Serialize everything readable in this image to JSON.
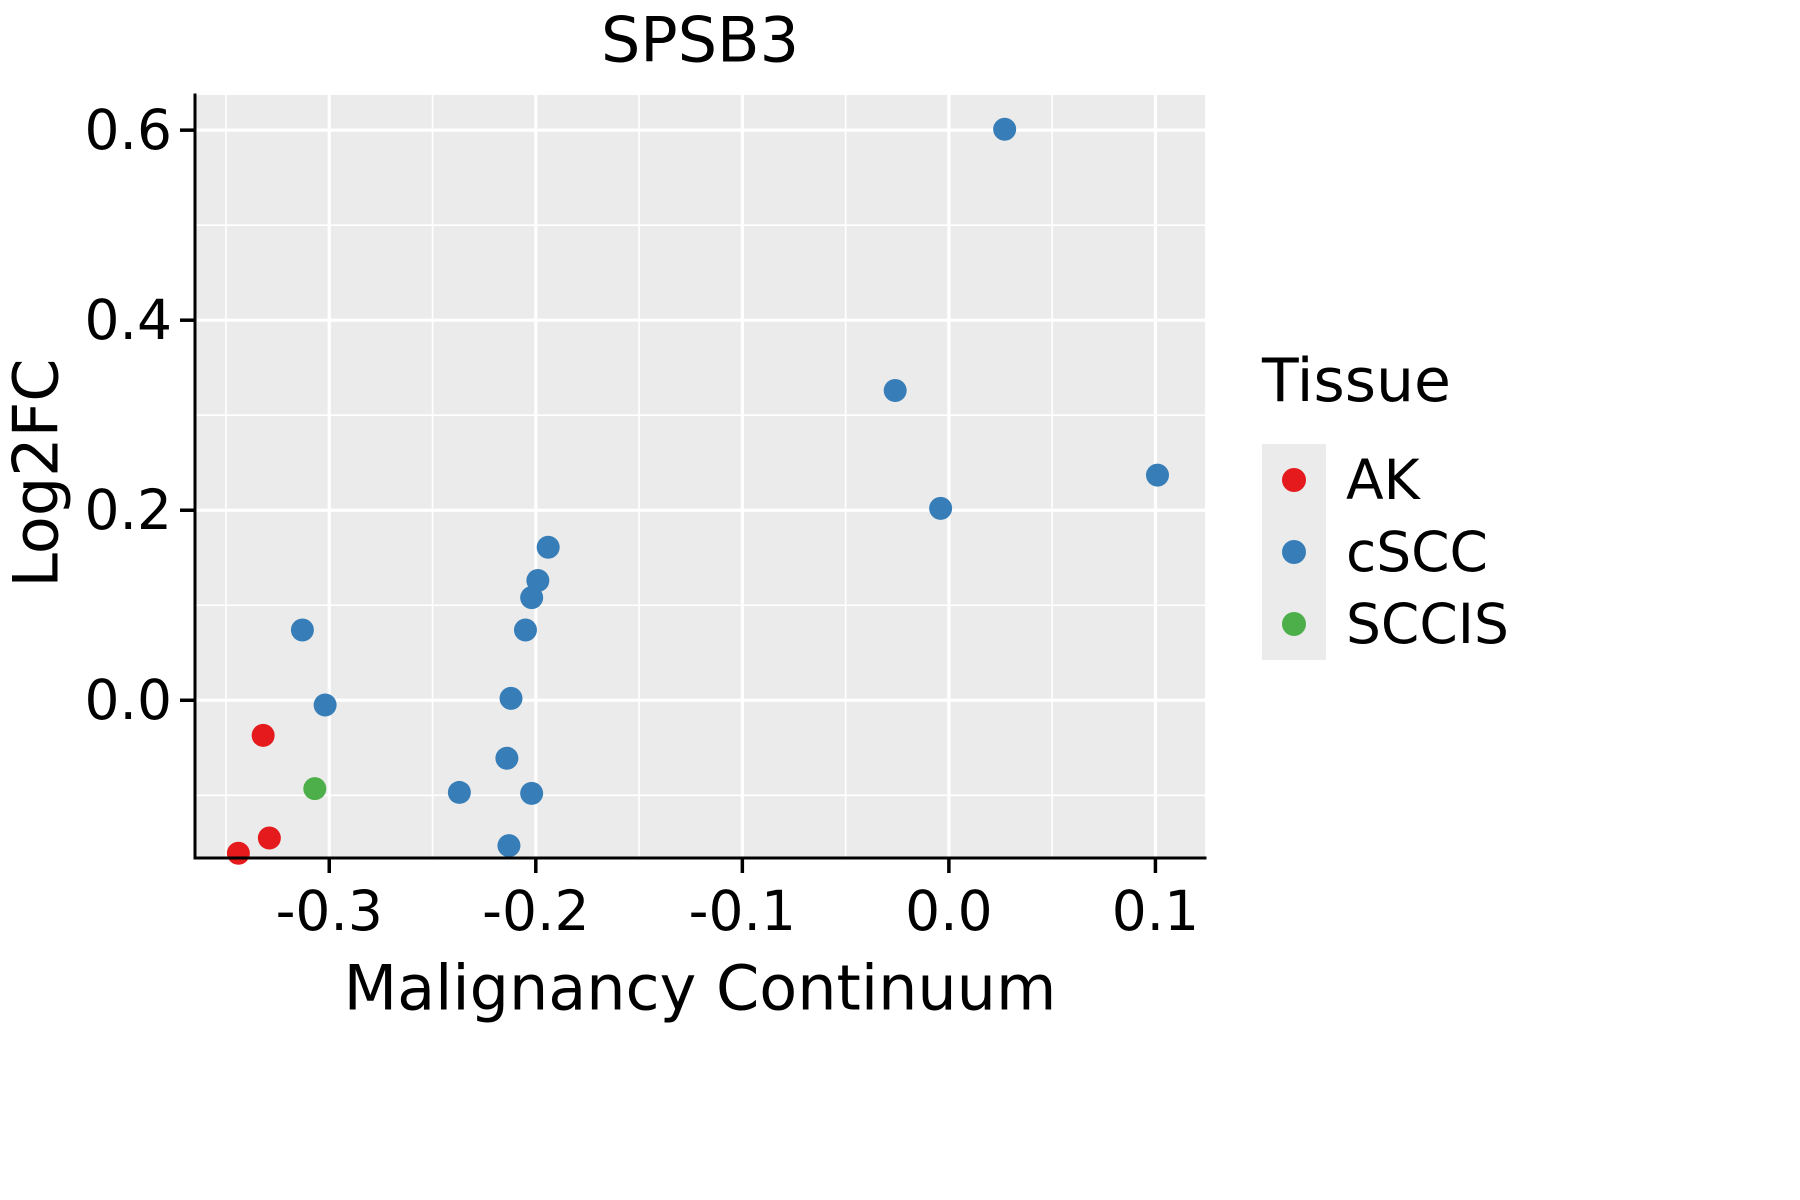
{
  "chart_data": {
    "type": "scatter",
    "title": "SPSB3",
    "xlabel": "Malignancy Continuum",
    "ylabel": "Log2FC",
    "xlim": [
      -0.365,
      0.124
    ],
    "ylim": [
      -0.166,
      0.637
    ],
    "x_ticks": [
      -0.3,
      -0.2,
      -0.1,
      0.0,
      0.1
    ],
    "x_tick_labels": [
      "-0.3",
      "-0.2",
      "-0.1",
      "0.0",
      "0.1"
    ],
    "y_ticks": [
      0.0,
      0.2,
      0.4,
      0.6
    ],
    "y_tick_labels": [
      "0.0",
      "0.2",
      "0.4",
      "0.6"
    ],
    "grid": true,
    "panel_bg": "#EBEBEB",
    "grid_color": "#FFFFFF",
    "axis_color": "#000000",
    "text_color": "#000000",
    "legend": {
      "title": "Tissue",
      "position": "right",
      "key_bg": "#EBEBEB"
    },
    "series": [
      {
        "name": "AK",
        "color": "#E41A1C",
        "points": [
          [
            -0.332,
            -0.037
          ],
          [
            -0.329,
            -0.145
          ],
          [
            -0.344,
            -0.161
          ]
        ]
      },
      {
        "name": "cSCC",
        "color": "#377EB8",
        "points": [
          [
            0.027,
            0.601
          ],
          [
            -0.026,
            0.326
          ],
          [
            0.101,
            0.237
          ],
          [
            -0.004,
            0.202
          ],
          [
            -0.194,
            0.161
          ],
          [
            -0.199,
            0.126
          ],
          [
            -0.202,
            0.108
          ],
          [
            -0.205,
            0.074
          ],
          [
            -0.313,
            0.074
          ],
          [
            -0.212,
            0.002
          ],
          [
            -0.302,
            -0.005
          ],
          [
            -0.214,
            -0.061
          ],
          [
            -0.237,
            -0.097
          ],
          [
            -0.202,
            -0.098
          ],
          [
            -0.213,
            -0.153
          ]
        ]
      },
      {
        "name": "SCCIS",
        "color": "#4DAF4A",
        "points": [
          [
            -0.307,
            -0.093
          ]
        ]
      }
    ]
  }
}
